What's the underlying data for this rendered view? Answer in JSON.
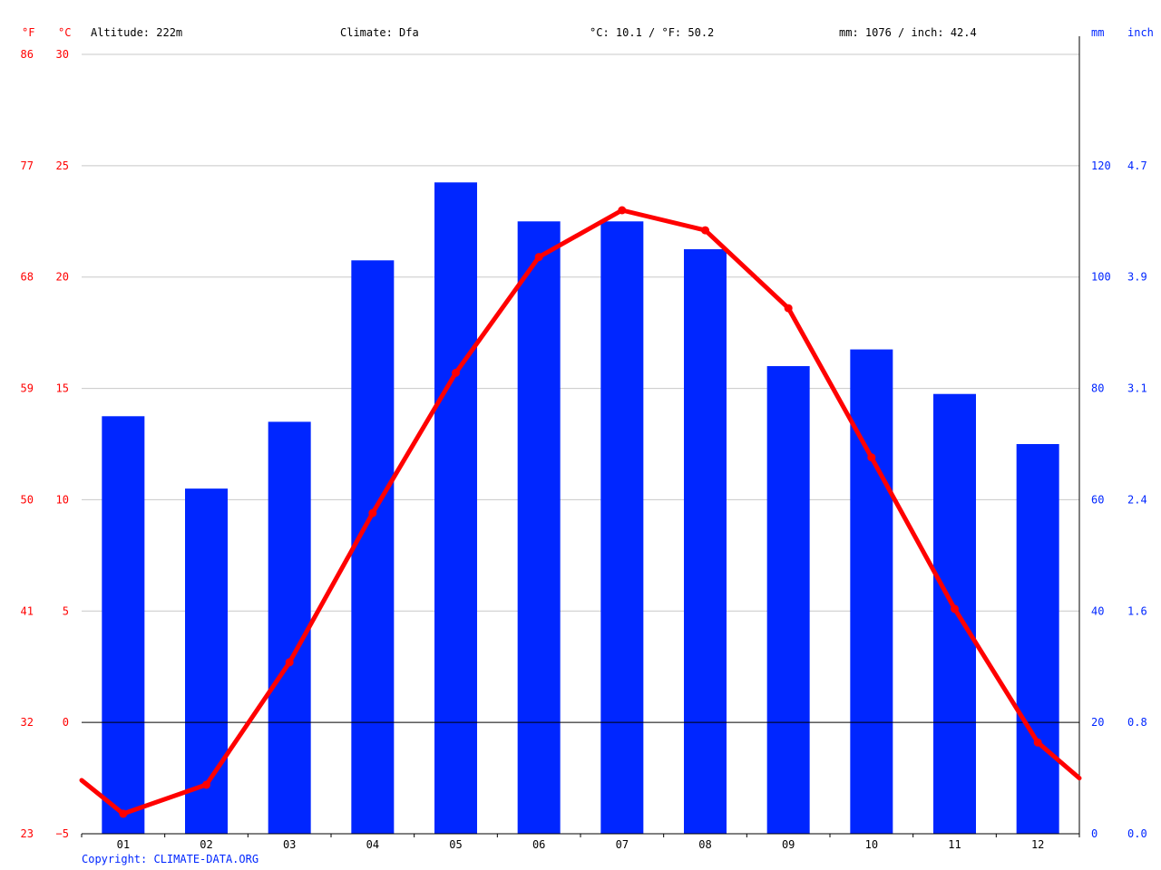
{
  "header": {
    "unit_f": "°F",
    "unit_c": "°C",
    "altitude": "Altitude: 222m",
    "climate": "Climate: Dfa",
    "mean_temp": "°C: 10.1 / °F: 50.2",
    "precip_total": "mm: 1076 / inch: 42.4",
    "unit_mm": "mm",
    "unit_inch": "inch"
  },
  "copyright": "Copyright: CLIMATE-DATA.ORG",
  "colors": {
    "temp": "#ff0000",
    "precip": "#0026ff",
    "grid": "#c8c8c8",
    "axis": "#000000"
  },
  "chart_data": {
    "type": "bar+line",
    "categories": [
      "01",
      "02",
      "03",
      "04",
      "05",
      "06",
      "07",
      "08",
      "09",
      "10",
      "11",
      "12"
    ],
    "series": [
      {
        "name": "mm",
        "type": "bar",
        "axis": "right",
        "values": [
          75,
          62,
          74,
          103,
          117,
          110,
          110,
          105,
          84,
          87,
          79,
          70
        ]
      },
      {
        "name": "°C",
        "type": "line",
        "axis": "left",
        "values": [
          -4.1,
          -2.8,
          2.7,
          9.4,
          15.7,
          20.9,
          23.0,
          22.1,
          18.6,
          11.9,
          5.1,
          -0.9
        ],
        "edge_values": [
          -2.6,
          -2.5
        ]
      }
    ],
    "y_left": {
      "label": "°C",
      "ylim": [
        -5,
        30
      ],
      "ticks": [
        -5,
        0,
        5,
        10,
        15,
        20,
        25,
        30
      ]
    },
    "y_left_f": {
      "label": "°F",
      "ticks": [
        "23",
        "32",
        "41",
        "50",
        "59",
        "68",
        "77",
        "86"
      ]
    },
    "y_right": {
      "label": "mm",
      "ylim": [
        0,
        140
      ],
      "ticks": [
        "0",
        "20",
        "40",
        "60",
        "80",
        "100",
        "120"
      ]
    },
    "y_right_in": {
      "label": "inch",
      "ticks": [
        "0.0",
        "0.8",
        "1.6",
        "2.4",
        "3.1",
        "3.9",
        "4.7"
      ]
    },
    "grid": true
  }
}
